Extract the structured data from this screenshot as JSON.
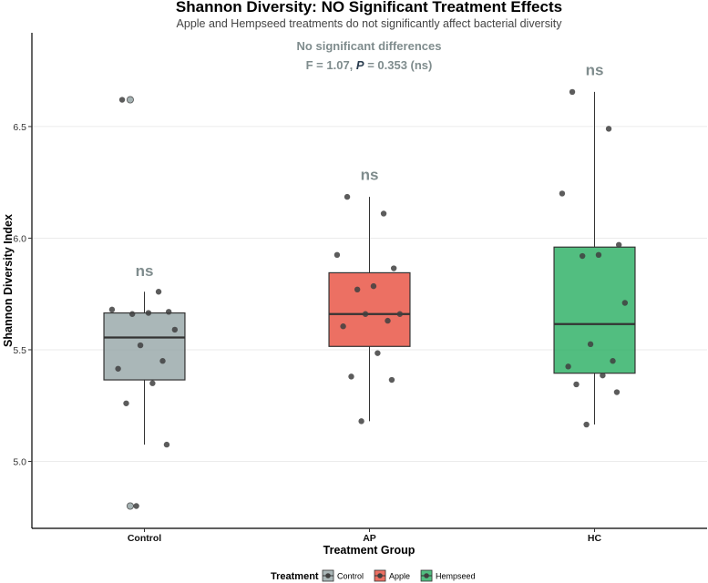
{
  "chart_data": {
    "type": "box",
    "title": "Shannon Diversity: NO Significant Treatment Effects",
    "subtitle": "Apple and Hempseed treatments do not significantly affect bacterial diversity",
    "xlabel": "Treatment Group",
    "ylabel": "Shannon Diversity Index",
    "ylim": [
      4.7,
      6.92
    ],
    "yticks": [
      "5.0",
      "5.5",
      "6.0",
      "6.5"
    ],
    "ytick_values": [
      5.0,
      5.5,
      6.0,
      6.5
    ],
    "grid": "horizontal",
    "annotation": {
      "line1": "No significant differences",
      "line2_prefix": "F = 1.07, ",
      "line2_p": "P",
      "line2_suffix": " = 0.353 (ns)"
    },
    "groups": [
      {
        "category": "Control",
        "fill": "#95a5a6",
        "q1": 5.365,
        "median": 5.555,
        "q3": 5.665,
        "whisker_low": 5.075,
        "whisker_high": 5.76,
        "outliers": [
          6.62,
          4.8
        ],
        "points": [
          6.62,
          5.76,
          5.68,
          5.67,
          5.665,
          5.66,
          5.59,
          5.52,
          5.45,
          5.415,
          5.35,
          5.26,
          5.075,
          4.8
        ],
        "sig_label": "ns",
        "sig_y": 5.83
      },
      {
        "category": "AP",
        "fill": "#e74c3c",
        "q1": 5.515,
        "median": 5.66,
        "q3": 5.845,
        "whisker_low": 5.18,
        "whisker_high": 6.185,
        "outliers": [],
        "points": [
          6.185,
          6.11,
          5.925,
          5.865,
          5.785,
          5.77,
          5.66,
          5.66,
          5.63,
          5.605,
          5.485,
          5.38,
          5.365,
          5.18
        ],
        "sig_label": "ns",
        "sig_y": 6.26
      },
      {
        "category": "HC",
        "fill": "#27ae60",
        "q1": 5.395,
        "median": 5.615,
        "q3": 5.96,
        "whisker_low": 5.165,
        "whisker_high": 6.655,
        "outliers": [],
        "points": [
          6.655,
          6.49,
          6.2,
          5.97,
          5.925,
          5.92,
          5.71,
          5.525,
          5.45,
          5.425,
          5.385,
          5.345,
          5.31,
          5.165
        ],
        "sig_label": "ns",
        "sig_y": 6.73
      }
    ],
    "legend": {
      "title": "Treatment",
      "position": "bottom",
      "items": [
        {
          "label": "Control",
          "color": "#95a5a6"
        },
        {
          "label": "Apple",
          "color": "#e74c3c"
        },
        {
          "label": "Hempseed",
          "color": "#27ae60"
        }
      ]
    }
  }
}
